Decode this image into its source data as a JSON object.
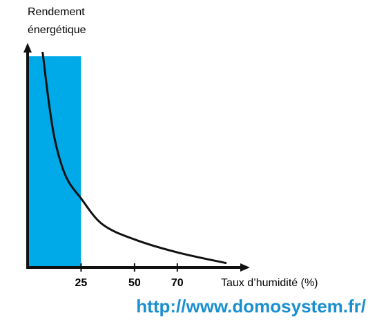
{
  "chart_data": {
    "type": "line",
    "y_label": [
      "Rendement",
      "énergétique"
    ],
    "x_label": "Taux d’humidité (%)",
    "watermark": "http://www.domosystem.fr/",
    "x": [
      7,
      10,
      13,
      18,
      25,
      35,
      50,
      70,
      93
    ],
    "values": [
      100,
      76,
      58,
      42,
      32,
      20,
      13,
      7,
      2
    ],
    "color": "#111111",
    "highlight": {
      "xrange": [
        0,
        25
      ],
      "top": 98,
      "color": "#00a9e8"
    },
    "xlim": [
      0,
      103
    ],
    "ylim": [
      0,
      100
    ],
    "xticks": [
      25,
      50,
      70
    ]
  }
}
